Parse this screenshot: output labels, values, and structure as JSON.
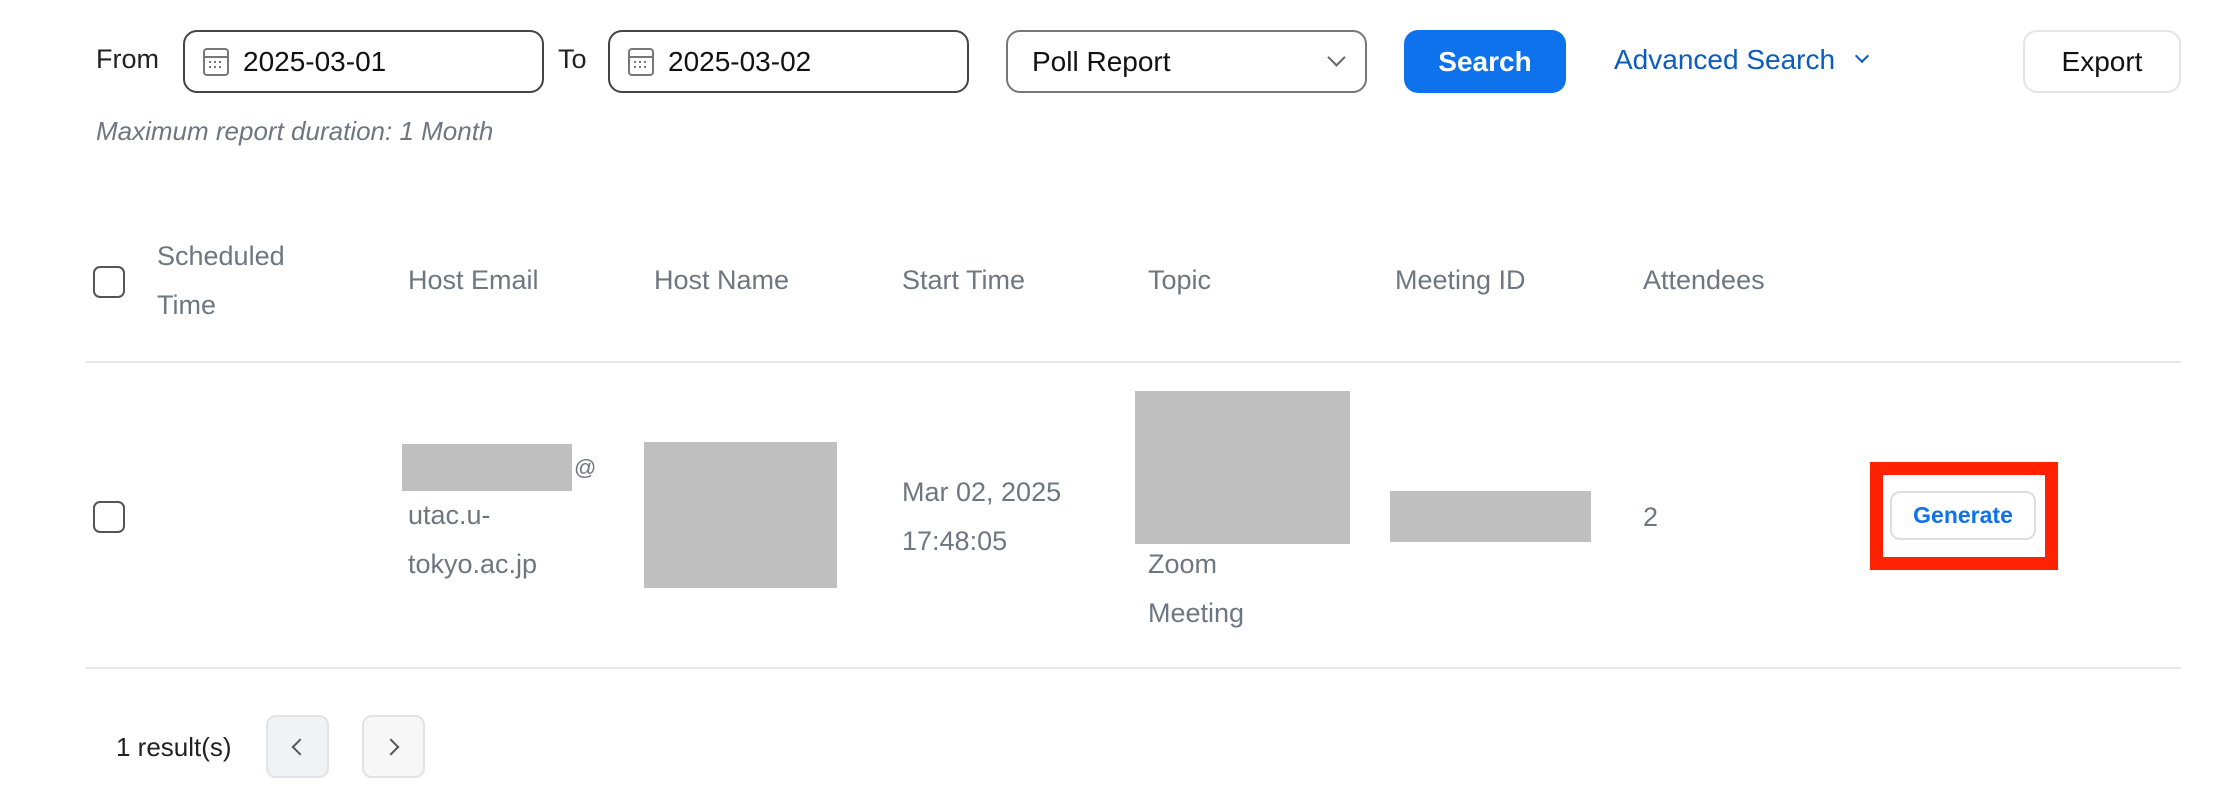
{
  "filters": {
    "from_label": "From",
    "from_value": "2025-03-01",
    "to_label": "To",
    "to_value": "2025-03-02",
    "report_type": "Poll Report",
    "search_label": "Search",
    "advanced_search_label": "Advanced Search",
    "export_label": "Export",
    "hint": "Maximum report duration: 1 Month"
  },
  "table": {
    "headers": [
      "Scheduled Time",
      "Host Email",
      "Host Name",
      "Start Time",
      "Topic",
      "Meeting ID",
      "Attendees"
    ],
    "rows": [
      {
        "host_email_suffix": "@",
        "host_email_domain_1": "utac.u-",
        "host_email_domain_2": "tokyo.ac.jp",
        "start_time_date": "Mar 02, 2025",
        "start_time_clock": "17:48:05",
        "topic_line_1": "Zoom",
        "topic_line_2": "Meeting",
        "attendees": "2",
        "action_label": "Generate"
      }
    ]
  },
  "pagination": {
    "result_count": "1 result(s)"
  },
  "colors": {
    "primary": "#0e72ed",
    "link": "#0b5cbf",
    "highlight": "#ff2200",
    "redacted": "#bfbfbf"
  }
}
